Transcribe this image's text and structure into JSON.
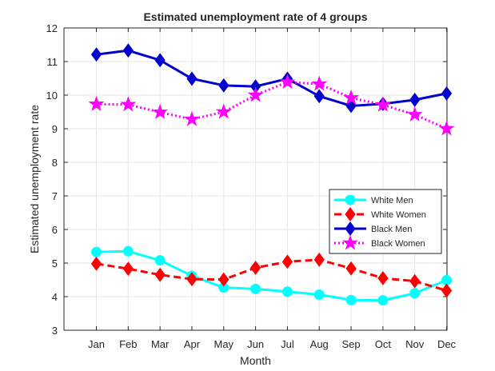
{
  "chart_data": {
    "type": "line",
    "title": "Estimated unemployment rate of 4 groups",
    "xlabel": "Month",
    "ylabel": "Estimated unemployment rate",
    "categories": [
      "Jan",
      "Feb",
      "Mar",
      "Apr",
      "May",
      "Jun",
      "Jul",
      "Aug",
      "Sep",
      "Oct",
      "Nov",
      "Dec"
    ],
    "ylim": [
      3,
      12
    ],
    "yticks": [
      "3",
      "4",
      "5",
      "6",
      "7",
      "8",
      "9",
      "10",
      "11",
      "12"
    ],
    "grid": true,
    "legend_position": "center-right",
    "series": [
      {
        "name": "White Men",
        "color": "#00ffff",
        "line_style": "solid",
        "marker": "circle",
        "values": [
          5.33,
          5.35,
          5.08,
          4.62,
          4.27,
          4.23,
          4.15,
          4.06,
          3.9,
          3.89,
          4.1,
          4.49
        ]
      },
      {
        "name": "White Women",
        "color": "#ff0000",
        "line_style": "dashed",
        "marker": "diamond",
        "values": [
          4.98,
          4.83,
          4.65,
          4.52,
          4.51,
          4.86,
          5.04,
          5.1,
          4.84,
          4.55,
          4.46,
          4.18
        ]
      },
      {
        "name": "Black Men",
        "color": "#0000cc",
        "line_style": "solid",
        "marker": "diamond",
        "values": [
          11.21,
          11.33,
          11.04,
          10.49,
          10.29,
          10.26,
          10.49,
          9.97,
          9.68,
          9.74,
          9.86,
          10.05
        ]
      },
      {
        "name": "Black Women",
        "color": "#ff00ff",
        "line_style": "dotted",
        "marker": "star",
        "values": [
          9.73,
          9.72,
          9.49,
          9.28,
          9.5,
          10.0,
          10.39,
          10.33,
          9.92,
          9.71,
          9.42,
          9.0
        ]
      }
    ]
  }
}
